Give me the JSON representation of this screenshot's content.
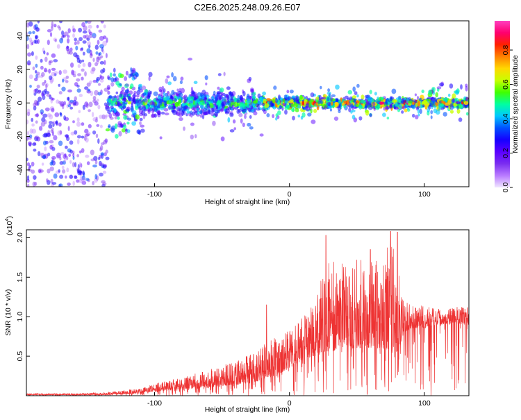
{
  "chart_data": [
    {
      "type": "heatmap",
      "title": "C2E6.2025.248.09.26.E07",
      "xlabel": "Height of straight line (km)",
      "ylabel": "Frequency (Hz)",
      "xlim": [
        -195,
        133
      ],
      "ylim": [
        -50,
        49
      ],
      "xticks": [
        -100,
        0,
        100
      ],
      "yticks": [
        -40,
        -20,
        0,
        20,
        40
      ],
      "colorbar": {
        "label": "Normalized spectral amplitude",
        "range": [
          0,
          0.97
        ],
        "ticks": [
          "0.0",
          "0.2",
          "0.4",
          "0.6",
          "0.8"
        ],
        "colormap": [
          "#f0e6ff",
          "#b97bff",
          "#7a2df0",
          "#5a00ff",
          "#1500ff",
          "#0050ff",
          "#00c8ff",
          "#00ffa0",
          "#40ff00",
          "#c8ff00",
          "#ffd800",
          "#ff8000",
          "#ff2000",
          "#ff0070",
          "#ff40c0"
        ]
      },
      "regions": [
        {
          "x": [
            -195,
            -135
          ],
          "description": "diffuse noise over full band",
          "amplitude": 0.15
        },
        {
          "x": [
            -135,
            -20
          ],
          "freq_center": 0,
          "freq_halfwidth": 10,
          "amplitude": 0.45
        },
        {
          "x": [
            -20,
            133
          ],
          "freq_center": 0,
          "freq_halfwidth": 4,
          "amplitude": 0.85
        }
      ]
    },
    {
      "type": "line",
      "xlabel": "Height of straight line (km)",
      "ylabel": "SNR (10 * v/v)",
      "multiplier_label": "(x10",
      "multiplier_exp": "4",
      "multiplier_close": ")",
      "xlim": [
        -195,
        133
      ],
      "ylim": [
        0,
        2.1
      ],
      "xticks": [
        -100,
        0,
        100
      ],
      "yticks": [
        0.5,
        1.0,
        1.5,
        2.0
      ],
      "ytick_labels": [
        "0.5",
        "1.0",
        "1.5",
        "2.0"
      ],
      "color": "#ee3333",
      "series": [
        {
          "name": "SNR",
          "x": [
            -195,
            -160,
            -140,
            -125,
            -110,
            -100,
            -90,
            -80,
            -70,
            -60,
            -50,
            -40,
            -30,
            -20,
            -10,
            0,
            10,
            20,
            25,
            30,
            40,
            50,
            60,
            70,
            75,
            80,
            82,
            85,
            90,
            100,
            110,
            120,
            133
          ],
          "envelope_low": [
            0.01,
            0.01,
            0.01,
            0.02,
            0.03,
            0.05,
            0.07,
            0.08,
            0.09,
            0.1,
            0.12,
            0.14,
            0.16,
            0.2,
            0.25,
            0.35,
            0.45,
            0.5,
            0.55,
            0.55,
            0.6,
            0.6,
            0.6,
            0.6,
            0.55,
            0.5,
            0.6,
            0.8,
            0.85,
            0.85,
            0.9,
            0.9,
            0.9
          ],
          "envelope_high": [
            0.03,
            0.03,
            0.04,
            0.06,
            0.1,
            0.15,
            0.2,
            0.22,
            0.28,
            0.33,
            0.38,
            0.45,
            0.55,
            0.65,
            0.75,
            0.85,
            1.0,
            1.2,
            1.6,
            1.7,
            1.7,
            1.75,
            1.7,
            1.8,
            2.0,
            2.05,
            1.3,
            1.2,
            1.15,
            1.15,
            1.1,
            1.12,
            1.15
          ],
          "spikes": [
            {
              "x": -17,
              "y": 1.15
            },
            {
              "x": 27,
              "y": 2.03
            },
            {
              "x": 75,
              "y": 2.08
            },
            {
              "x": 80,
              "y": 2.07
            },
            {
              "x": 60,
              "y": 1.85
            }
          ]
        }
      ]
    }
  ]
}
